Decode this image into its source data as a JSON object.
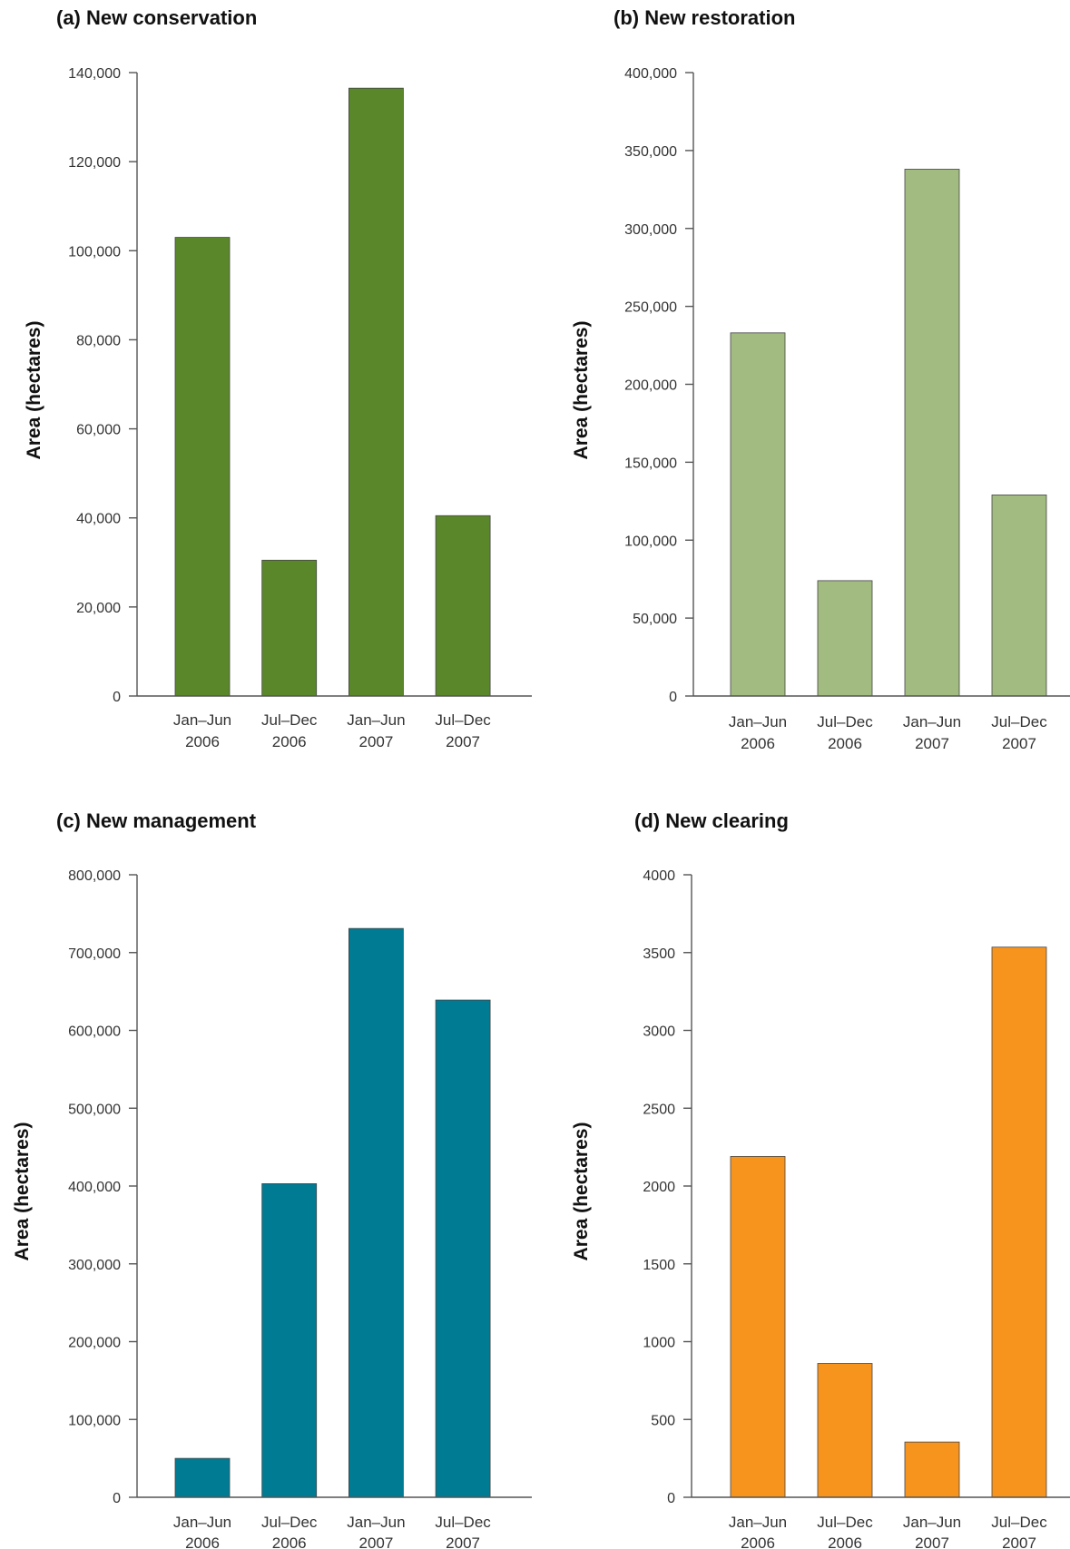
{
  "chart_data": [
    {
      "type": "bar",
      "title": "(a) New conservation",
      "ylabel": "Area (hectares)",
      "xlabel": "",
      "categories": [
        [
          "Jan–Jun",
          "2006"
        ],
        [
          "Jul–Dec",
          "2006"
        ],
        [
          "Jan–Jun",
          "2007"
        ],
        [
          "Jul–Dec",
          "2007"
        ]
      ],
      "values": [
        103000,
        30500,
        136500,
        40500
      ],
      "ylim": [
        0,
        140000
      ],
      "yticks": [
        0,
        20000,
        40000,
        60000,
        80000,
        100000,
        120000,
        140000
      ],
      "ytick_labels": [
        "0",
        "20,000",
        "40,000",
        "60,000",
        "80,000",
        "100,000",
        "120,000",
        "140,000"
      ],
      "color": "#5a872a",
      "grid": false
    },
    {
      "type": "bar",
      "title": "(b) New restoration",
      "ylabel": "Area (hectares)",
      "xlabel": "",
      "categories": [
        [
          "Jan–Jun",
          "2006"
        ],
        [
          "Jul–Dec",
          "2006"
        ],
        [
          "Jan–Jun",
          "2007"
        ],
        [
          "Jul–Dec",
          "2007"
        ]
      ],
      "values": [
        233000,
        74000,
        338000,
        129000
      ],
      "ylim": [
        0,
        400000
      ],
      "yticks": [
        0,
        50000,
        100000,
        150000,
        200000,
        250000,
        300000,
        350000,
        400000
      ],
      "ytick_labels": [
        "0",
        "50,000",
        "100,000",
        "150,000",
        "200,000",
        "250,000",
        "300,000",
        "350,000",
        "400,000"
      ],
      "color": "#a1bb81",
      "grid": false
    },
    {
      "type": "bar",
      "title": "(c) New management",
      "ylabel": "Area (hectares)",
      "xlabel": "",
      "categories": [
        [
          "Jan–Jun",
          "2006"
        ],
        [
          "Jul–Dec",
          "2006"
        ],
        [
          "Jan–Jun",
          "2007"
        ],
        [
          "Jul–Dec",
          "2007"
        ]
      ],
      "values": [
        50000,
        403000,
        731000,
        639000
      ],
      "ylim": [
        0,
        800000
      ],
      "yticks": [
        0,
        100000,
        200000,
        300000,
        400000,
        500000,
        600000,
        700000,
        800000
      ],
      "ytick_labels": [
        "0",
        "100,000",
        "200,000",
        "300,000",
        "400,000",
        "500,000",
        "600,000",
        "700,000",
        "800,000"
      ],
      "color": "#007b94",
      "grid": false
    },
    {
      "type": "bar",
      "title": "(d) New clearing",
      "ylabel": "Area (hectares)",
      "xlabel": "",
      "categories": [
        [
          "Jan–Jun",
          "2006"
        ],
        [
          "Jul–Dec",
          "2006"
        ],
        [
          "Jan–Jun",
          "2007"
        ],
        [
          "Jul–Dec",
          "2007"
        ]
      ],
      "values": [
        2190,
        860,
        355,
        3535
      ],
      "ylim": [
        0,
        4000
      ],
      "yticks": [
        0,
        500,
        1000,
        1500,
        2000,
        2500,
        3000,
        3500,
        4000
      ],
      "ytick_labels": [
        "0",
        "500",
        "1000",
        "1500",
        "2000",
        "2500",
        "3000",
        "3500",
        "4000"
      ],
      "color": "#f7941e",
      "grid": false
    }
  ]
}
